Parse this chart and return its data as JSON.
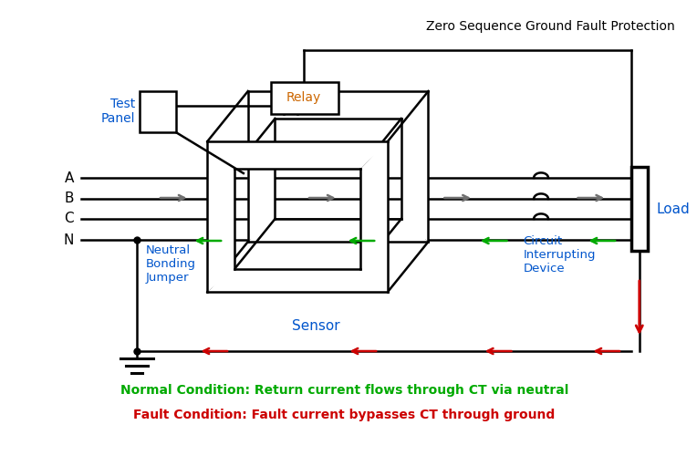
{
  "title": "Zero Sequence Ground Fault Protection",
  "bg_color": "#ffffff",
  "line_color": "#000000",
  "gray_arrow_color": "#707070",
  "green_color": "#00aa00",
  "red_color": "#cc0000",
  "blue_label_color": "#0055cc",
  "orange_relay_color": "#cc6600",
  "legend_normal": "Normal Condition: Return current flows through CT via neutral",
  "legend_fault": "Fault Condition: Fault current bypasses CT through ground"
}
